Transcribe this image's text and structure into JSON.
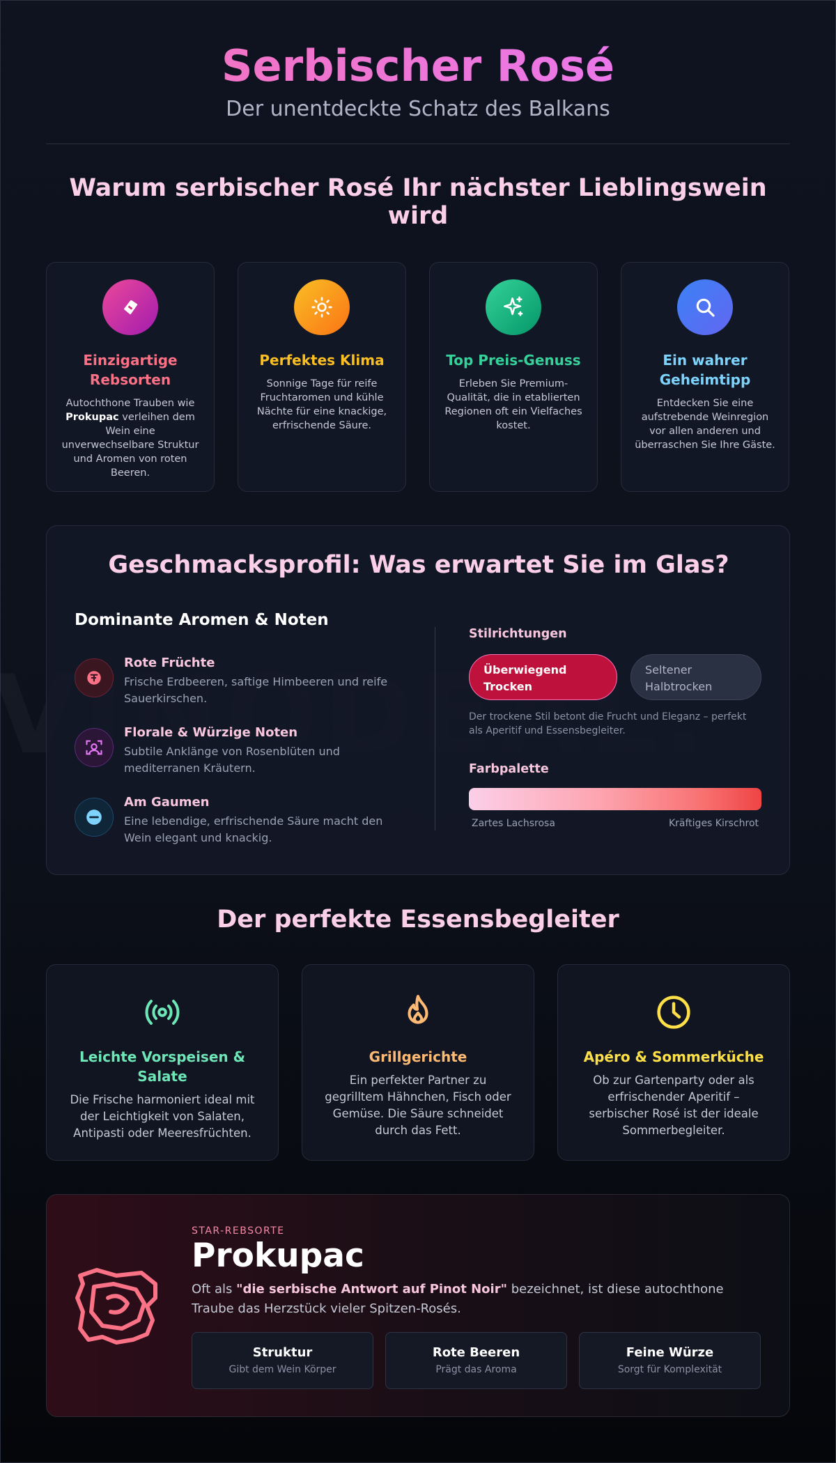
{
  "watermark": "VINODEAL.",
  "header": {
    "title": "Serbischer Rosé",
    "subtitle": "Der unentdeckte Schatz des Balkans"
  },
  "why": {
    "title": "Warum serbischer Rosé Ihr nächster Lieblingswein wird",
    "cards": [
      {
        "icon": "grape-leaf-icon",
        "title": "Einzigartige Rebsorten",
        "desc_before": "Autochthone Trauben wie ",
        "desc_strong": "Prokupac",
        "desc_after": " verleihen dem Wein eine unverwechselbare Struktur und Aromen von roten Beeren.",
        "color": "#fb7185"
      },
      {
        "icon": "sun-icon",
        "title": "Perfektes Klima",
        "desc": "Sonnige Tage für reife Fruchtaromen und kühle Nächte für eine knackige, erfrischende Säure.",
        "color": "#fbbf24"
      },
      {
        "icon": "sparkles-icon",
        "title": "Top Preis-Genuss",
        "desc": "Erleben Sie Premium-Qualität, die in etablierten Regionen oft ein Vielfaches kostet.",
        "color": "#34d399"
      },
      {
        "icon": "search-icon",
        "title": "Ein wahrer Geheimtipp",
        "desc": "Entdecken Sie eine aufstrebende Weinregion vor allen anderen und überraschen Sie Ihre Gäste.",
        "color": "#7dd3fc"
      }
    ]
  },
  "profile": {
    "title": "Geschmacksprofil: Was erwartet Sie im Glas?",
    "aromas_heading": "Dominante Aromen & Noten",
    "aromas": [
      {
        "icon": "berry-icon",
        "title": "Rote Früchte",
        "desc": "Frische Erdbeeren, saftige Himbeeren und reife Sauerkirschen."
      },
      {
        "icon": "flower-icon",
        "title": "Florale & Würzige Noten",
        "desc": "Subtile Anklänge von Rosenblüten und mediterranen Kräutern."
      },
      {
        "icon": "palate-icon",
        "title": "Am Gaumen",
        "desc": "Eine lebendige, erfrischende Säure macht den Wein elegant und knackig."
      }
    ],
    "style_heading": "Stilrichtungen",
    "styles": [
      "Überwiegend Trocken",
      "Seltener Halbtrocken"
    ],
    "style_note": "Der trockene Stil betont die Frucht und Eleganz – perfekt als Aperitif und Essensbegleiter.",
    "palette_heading": "Farbpalette",
    "palette_left": "Zartes Lachsrosa",
    "palette_right": "Kräftiges Kirschrot"
  },
  "pairing": {
    "title": "Der perfekte Essensbegleiter",
    "cards": [
      {
        "icon": "broadcast-icon",
        "title": "Leichte Vorspeisen & Salate",
        "desc": "Die Frische harmoniert ideal mit der Leichtigkeit von Salaten, Antipasti oder Meeresfrüchten.",
        "color": "#6ee7b7"
      },
      {
        "icon": "flame-icon",
        "title": "Grillgerichte",
        "desc": "Ein perfekter Partner zu gegrilltem Hähnchen, Fisch oder Gemüse. Die Säure schneidet durch das Fett.",
        "color": "#fdba74"
      },
      {
        "icon": "clock-icon",
        "title": "Apéro & Sommerküche",
        "desc": "Ob zur Gartenparty oder als erfrischender Aperitif – serbischer Rosé ist der ideale Sommerbegleiter.",
        "color": "#fde047"
      }
    ]
  },
  "star": {
    "icon": "grape-cluster-icon",
    "eyebrow": "STAR-REBSORTE",
    "title": "Prokupac",
    "desc_before": "Oft als ",
    "desc_strong": "\"die serbische Antwort auf Pinot Noir\"",
    "desc_after": " bezeichnet, ist diese autochthone Traube das Herzstück vieler Spitzen-Rosés.",
    "chips": [
      {
        "title": "Struktur",
        "sub": "Gibt dem Wein Körper"
      },
      {
        "title": "Rote Beeren",
        "sub": "Prägt das Aroma"
      },
      {
        "title": "Feine Würze",
        "sub": "Sorgt für Komplexität"
      }
    ]
  }
}
